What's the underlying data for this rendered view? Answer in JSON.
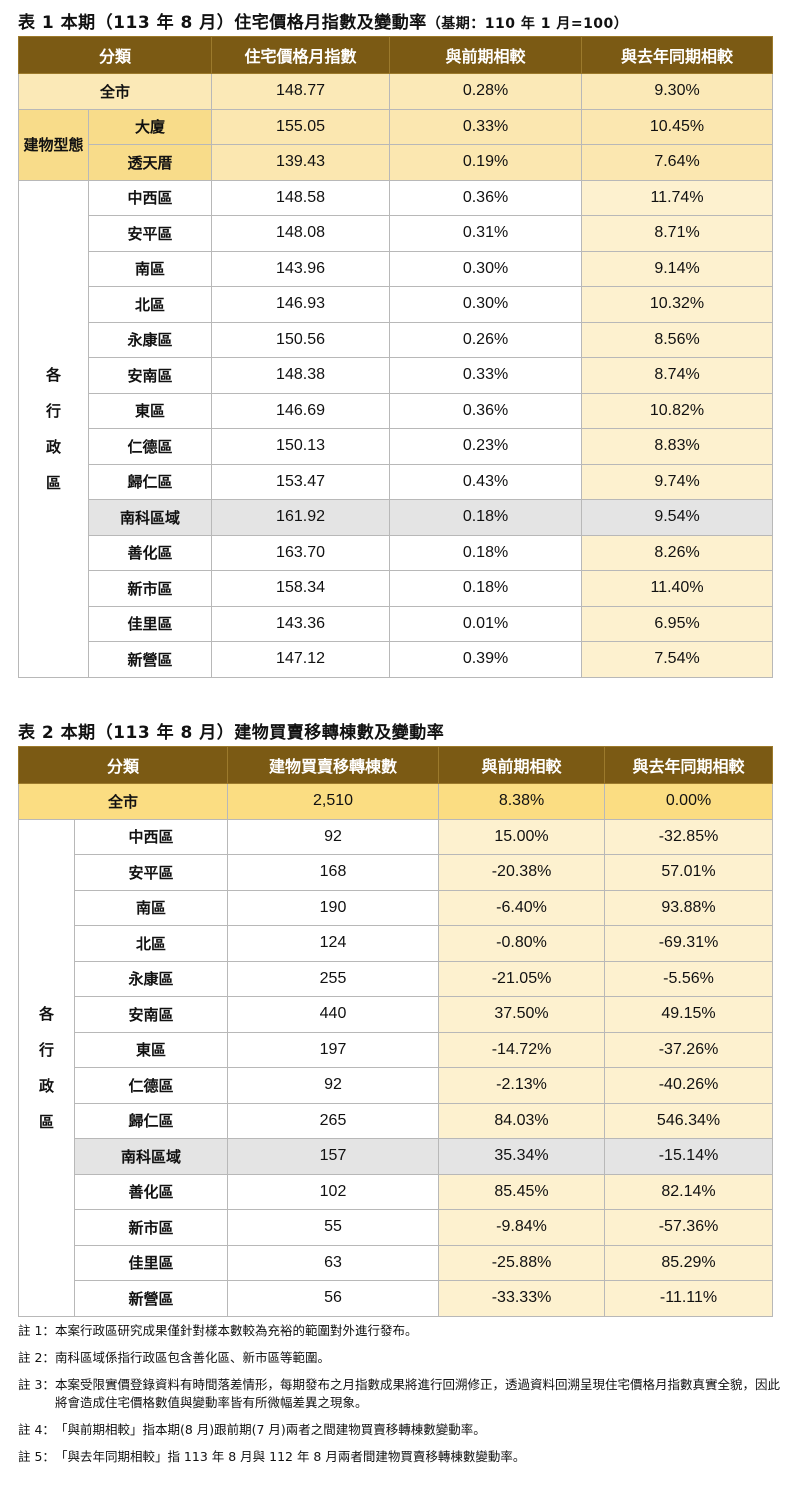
{
  "table1": {
    "title": "表 1 本期（113 年 8 月）住宅價格月指數及變動率",
    "subtitle": "（基期：110 年 1 月=100）",
    "headers": [
      "分類",
      "住宅價格月指數",
      "與前期相較",
      "與去年同期相較"
    ],
    "total": {
      "label": "全市",
      "index": "148.77",
      "mom": "0.28%",
      "yoy": "9.30%"
    },
    "building_group_label": "建物型態",
    "building_types": [
      {
        "label": "大廈",
        "index": "155.05",
        "mom": "0.33%",
        "yoy": "10.45%"
      },
      {
        "label": "透天厝",
        "index": "139.43",
        "mom": "0.19%",
        "yoy": "7.64%"
      }
    ],
    "district_group_label": "各行政區",
    "districts": [
      {
        "label": "中西區",
        "index": "148.58",
        "mom": "0.36%",
        "yoy": "11.74%"
      },
      {
        "label": "安平區",
        "index": "148.08",
        "mom": "0.31%",
        "yoy": "8.71%"
      },
      {
        "label": "南區",
        "index": "143.96",
        "mom": "0.30%",
        "yoy": "9.14%"
      },
      {
        "label": "北區",
        "index": "146.93",
        "mom": "0.30%",
        "yoy": "10.32%"
      },
      {
        "label": "永康區",
        "index": "150.56",
        "mom": "0.26%",
        "yoy": "8.56%"
      },
      {
        "label": "安南區",
        "index": "148.38",
        "mom": "0.33%",
        "yoy": "8.74%"
      },
      {
        "label": "東區",
        "index": "146.69",
        "mom": "0.36%",
        "yoy": "10.82%"
      },
      {
        "label": "仁德區",
        "index": "150.13",
        "mom": "0.23%",
        "yoy": "8.83%"
      },
      {
        "label": "歸仁區",
        "index": "153.47",
        "mom": "0.43%",
        "yoy": "9.74%"
      },
      {
        "label": "南科區域",
        "index": "161.92",
        "mom": "0.18%",
        "yoy": "9.54%",
        "highlight": true
      },
      {
        "label": "善化區",
        "index": "163.70",
        "mom": "0.18%",
        "yoy": "8.26%"
      },
      {
        "label": "新市區",
        "index": "158.34",
        "mom": "0.18%",
        "yoy": "11.40%"
      },
      {
        "label": "佳里區",
        "index": "143.36",
        "mom": "0.01%",
        "yoy": "6.95%"
      },
      {
        "label": "新營區",
        "index": "147.12",
        "mom": "0.39%",
        "yoy": "7.54%"
      }
    ]
  },
  "table2": {
    "title": "表 2 本期（113 年 8 月）建物買賣移轉棟數及變動率",
    "headers": [
      "分類",
      "建物買賣移轉棟數",
      "與前期相較",
      "與去年同期相較"
    ],
    "total": {
      "label": "全市",
      "count": "2,510",
      "mom": "8.38%",
      "yoy": "0.00%"
    },
    "district_group_label": "各行政區",
    "districts": [
      {
        "label": "中西區",
        "count": "92",
        "mom": "15.00%",
        "yoy": "-32.85%"
      },
      {
        "label": "安平區",
        "count": "168",
        "mom": "-20.38%",
        "yoy": "57.01%"
      },
      {
        "label": "南區",
        "count": "190",
        "mom": "-6.40%",
        "yoy": "93.88%"
      },
      {
        "label": "北區",
        "count": "124",
        "mom": "-0.80%",
        "yoy": "-69.31%"
      },
      {
        "label": "永康區",
        "count": "255",
        "mom": "-21.05%",
        "yoy": "-5.56%"
      },
      {
        "label": "安南區",
        "count": "440",
        "mom": "37.50%",
        "yoy": "49.15%"
      },
      {
        "label": "東區",
        "count": "197",
        "mom": "-14.72%",
        "yoy": "-37.26%"
      },
      {
        "label": "仁德區",
        "count": "92",
        "mom": "-2.13%",
        "yoy": "-40.26%"
      },
      {
        "label": "歸仁區",
        "count": "265",
        "mom": "84.03%",
        "yoy": "546.34%"
      },
      {
        "label": "南科區域",
        "count": "157",
        "mom": "35.34%",
        "yoy": "-15.14%",
        "highlight": true
      },
      {
        "label": "善化區",
        "count": "102",
        "mom": "85.45%",
        "yoy": "82.14%"
      },
      {
        "label": "新市區",
        "count": "55",
        "mom": "-9.84%",
        "yoy": "-57.36%"
      },
      {
        "label": "佳里區",
        "count": "63",
        "mom": "-25.88%",
        "yoy": "85.29%"
      },
      {
        "label": "新營區",
        "count": "56",
        "mom": "-33.33%",
        "yoy": "-11.11%"
      }
    ]
  },
  "notes": [
    {
      "key": "註 1：",
      "text": "本案行政區研究成果僅針對樣本數較為充裕的範圍對外進行發布。"
    },
    {
      "key": "註 2：",
      "text": "南科區域係指行政區包含善化區、新市區等範圍。"
    },
    {
      "key": "註 3：",
      "text": "本案受限實價登錄資料有時間落差情形，每期發布之月指數成果將進行回溯修正，透過資料回溯呈現住宅價格月指數真實全貌，因此將會造成住宅價格數值與變動率皆有所微幅差異之現象。"
    },
    {
      "key": "註 4：",
      "text": "「與前期相較」指本期(8 月)跟前期(7 月)兩者之間建物買賣移轉棟數變動率。"
    },
    {
      "key": "註 5：",
      "text": "「與去年同期相較」指 113 年 8 月與 112 年 8 月兩者間建物買賣移轉棟數變動率。"
    }
  ]
}
